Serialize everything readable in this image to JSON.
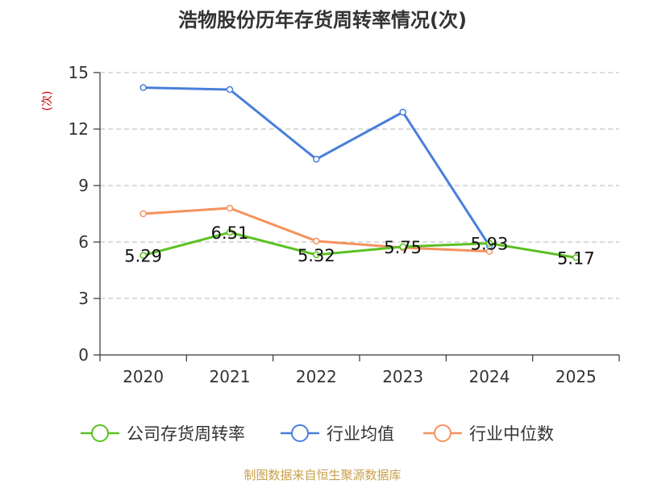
{
  "chart_data": {
    "type": "line",
    "title": "浩物股份历年存货周转率情况(次)",
    "ylabel": "(次)",
    "xlabel": "",
    "ylim": [
      0,
      15
    ],
    "yticks": [
      0,
      3,
      6,
      9,
      12,
      15
    ],
    "categories": [
      "2020",
      "2021",
      "2022",
      "2023",
      "2024",
      "2025"
    ],
    "grid": true,
    "legend_position": "bottom",
    "series": [
      {
        "name": "公司存货周转率",
        "color": "#5cc123",
        "values": [
          5.29,
          6.51,
          5.32,
          5.75,
          5.93,
          5.17
        ],
        "labels": [
          "5.29",
          "6.51",
          "5.32",
          "5.75",
          "5.93",
          "5.17"
        ]
      },
      {
        "name": "行业均值",
        "color": "#4a7fdc",
        "values": [
          14.2,
          14.1,
          10.4,
          12.9,
          5.8,
          null
        ]
      },
      {
        "name": "行业中位数",
        "color": "#f5925e",
        "values": [
          7.5,
          7.8,
          6.05,
          5.7,
          5.5,
          null
        ]
      }
    ],
    "unit_color": "#cc0000"
  },
  "source": {
    "text": "制图数据来自恒生聚源数据库",
    "color": "#c8a04c"
  }
}
